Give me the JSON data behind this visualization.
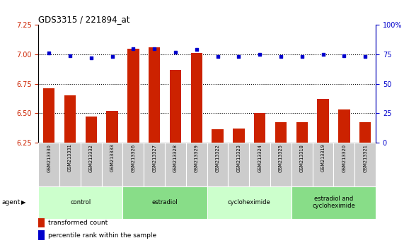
{
  "title": "GDS3315 / 221894_at",
  "samples": [
    "GSM213330",
    "GSM213331",
    "GSM213332",
    "GSM213333",
    "GSM213326",
    "GSM213327",
    "GSM213328",
    "GSM213329",
    "GSM213322",
    "GSM213323",
    "GSM213324",
    "GSM213325",
    "GSM213318",
    "GSM213319",
    "GSM213320",
    "GSM213321"
  ],
  "red_values": [
    6.71,
    6.65,
    6.47,
    6.52,
    7.05,
    7.06,
    6.87,
    7.01,
    6.36,
    6.37,
    6.5,
    6.42,
    6.42,
    6.62,
    6.53,
    6.42
  ],
  "blue_values": [
    76,
    74,
    72,
    73,
    80,
    80,
    77,
    79,
    73,
    73,
    75,
    73,
    73,
    75,
    74,
    73
  ],
  "ylim_left": [
    6.25,
    7.25
  ],
  "ylim_right": [
    0,
    100
  ],
  "yticks_left": [
    6.25,
    6.5,
    6.75,
    7.0,
    7.25
  ],
  "yticks_right": [
    0,
    25,
    50,
    75,
    100
  ],
  "groups": [
    {
      "label": "control",
      "start": 0,
      "end": 4,
      "color": "#ccffcc"
    },
    {
      "label": "estradiol",
      "start": 4,
      "end": 8,
      "color": "#88dd88"
    },
    {
      "label": "cycloheximide",
      "start": 8,
      "end": 12,
      "color": "#ccffcc"
    },
    {
      "label": "estradiol and\ncycloheximide",
      "start": 12,
      "end": 16,
      "color": "#88dd88"
    }
  ],
  "bar_color": "#cc2200",
  "dot_color": "#0000cc",
  "agent_label": "agent",
  "legend_red": "transformed count",
  "legend_blue": "percentile rank within the sample",
  "sample_box_color": "#cccccc",
  "right_axis_top_label": "100%"
}
